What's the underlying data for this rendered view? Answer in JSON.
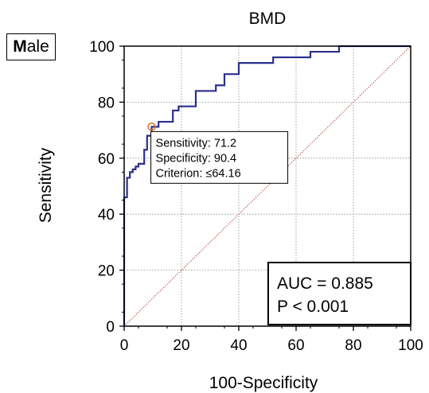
{
  "badge": {
    "prefix": "M",
    "rest": "ale"
  },
  "chart_data": {
    "type": "line",
    "title": "BMD",
    "xlabel": "100-Specificity",
    "ylabel": "Sensitivity",
    "xlim": [
      0,
      100
    ],
    "ylim": [
      0,
      100
    ],
    "xticks": [
      "0",
      "20",
      "40",
      "60",
      "80",
      "100"
    ],
    "yticks": [
      "0",
      "20",
      "40",
      "60",
      "80",
      "100"
    ],
    "grid": true,
    "series": [
      {
        "color": "#2b2f8f",
        "x": [
          0,
          0,
          0,
          1,
          1,
          2,
          2,
          3,
          3,
          4,
          4,
          5,
          5,
          7,
          7,
          8,
          8,
          9.6,
          9.6,
          12,
          12,
          17,
          17,
          19,
          19,
          25,
          25,
          32,
          32,
          35,
          35,
          40,
          40,
          52,
          52,
          65,
          65,
          75,
          75,
          100
        ],
        "y": [
          0,
          12,
          46,
          46,
          53,
          53,
          55,
          55,
          56,
          56,
          57,
          57,
          58,
          58,
          63,
          63,
          68,
          68,
          71.2,
          71.2,
          73,
          73,
          77,
          77,
          78.5,
          78.5,
          84,
          84,
          86,
          86,
          90,
          90,
          94,
          94,
          96,
          96,
          98,
          98,
          100,
          100
        ]
      },
      {
        "style": "dotted",
        "color": "#b22222",
        "x": [
          0,
          100
        ],
        "y": [
          0,
          100
        ]
      }
    ],
    "criterion_point": {
      "x": 9.6,
      "y": 71.2,
      "color": "#e07020"
    },
    "annotation": {
      "lines": [
        "Sensitivity: 71.2",
        "Specificity: 90.4",
        "Criterion: ≤64.16"
      ]
    },
    "auc_box": {
      "lines": [
        "AUC = 0.885",
        "P < 0.001"
      ]
    }
  }
}
